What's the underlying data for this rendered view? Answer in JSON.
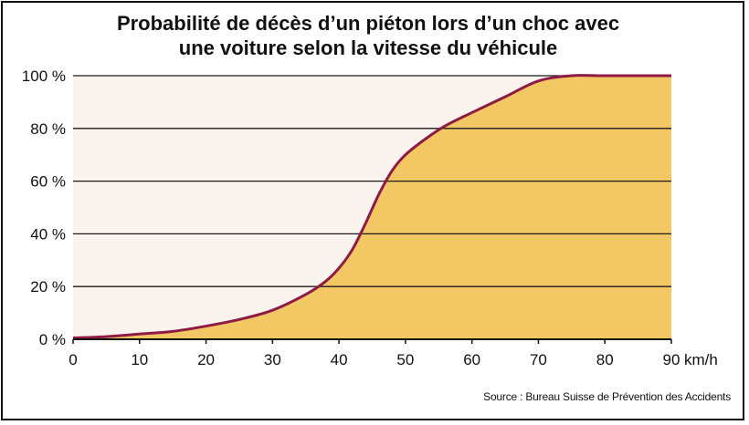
{
  "chart_data": {
    "type": "area",
    "title_line1": "Probabilité de décès d’un piéton lors d’un choc avec",
    "title_line2": "une voiture selon la vitesse du véhicule",
    "xlabel": "",
    "ylabel": "",
    "x_unit": "km/h",
    "xlim": [
      0,
      90
    ],
    "ylim": [
      0,
      100
    ],
    "x_ticks": [
      "0",
      "10",
      "20",
      "30",
      "40",
      "50",
      "60",
      "70",
      "80",
      "90"
    ],
    "y_ticks": [
      "0 %",
      "20 %",
      "40 %",
      "60 %",
      "80 %",
      "100 %"
    ],
    "grid": "horizontal",
    "series": [
      {
        "x": [
          0,
          5,
          10,
          15,
          20,
          25,
          30,
          35,
          38,
          40,
          42,
          44,
          46,
          48,
          50,
          53,
          56,
          60,
          65,
          70,
          75,
          80,
          90
        ],
        "y": [
          0.5,
          1,
          2,
          3,
          5,
          7.5,
          11,
          17,
          22,
          27,
          34,
          44,
          55,
          64,
          70,
          76,
          81,
          86,
          92,
          98,
          100,
          100,
          100
        ]
      }
    ],
    "colors": {
      "fill": "#f3c764",
      "line": "#8e1b45",
      "plot_background": "#fbf4ee",
      "grid": "#1a1a1a"
    },
    "source": "Source : Bureau Suisse de Prévention des Accidents"
  }
}
